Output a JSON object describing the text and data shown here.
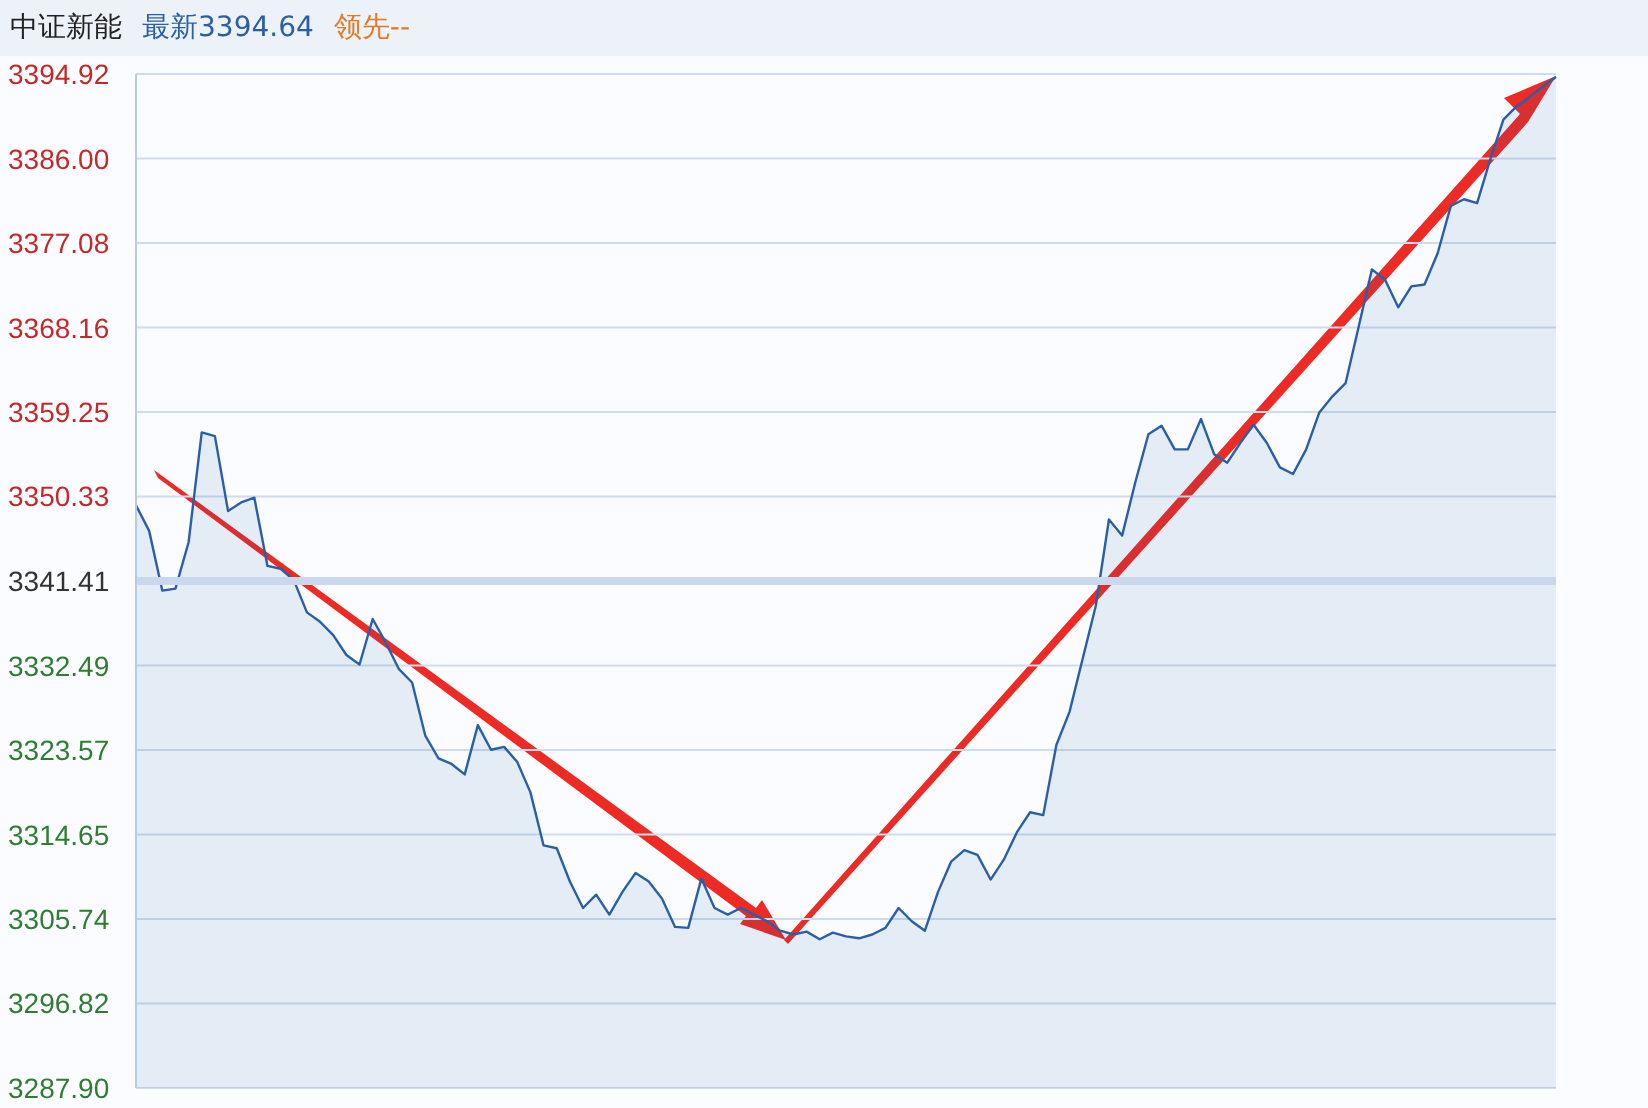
{
  "chart_data": {
    "type": "area",
    "title": "中证新能",
    "subtitle": "最新3394.64",
    "annotations": [
      "领先--"
    ],
    "categories": [
      null,
      null,
      null,
      null,
      null,
      null,
      null,
      null,
      null,
      null,
      null,
      null,
      null,
      null,
      null,
      null,
      null,
      null,
      null,
      null,
      null,
      null,
      null,
      null,
      null,
      null,
      null,
      null,
      null,
      null,
      null,
      null,
      null,
      null,
      null,
      null,
      null,
      null,
      null,
      null,
      null,
      null,
      null,
      null,
      null,
      null,
      null,
      null,
      null,
      null,
      null,
      null,
      null,
      null,
      null,
      null,
      null,
      null,
      null,
      null,
      null,
      null,
      null,
      null,
      null,
      null,
      null,
      null,
      null,
      null,
      null,
      null,
      null,
      null,
      null,
      null,
      null,
      null,
      null,
      null,
      null,
      null,
      null,
      null,
      null,
      null,
      null,
      null,
      null,
      null,
      null,
      null,
      null,
      null,
      null,
      null,
      null,
      null,
      null,
      null,
      null,
      null,
      null,
      null,
      null,
      null,
      null,
      null,
      null
    ],
    "series": [
      {
        "color": "#2a5fa8",
        "values": [
          3349.4,
          3346.7,
          3340.4,
          3340.6,
          3345.5,
          3357.1,
          3356.7,
          3348.8,
          3349.7,
          3350.2,
          3343.0,
          3342.7,
          3341.5,
          3338.1,
          3337.1,
          3335.7,
          3333.6,
          3332.6,
          3337.4,
          3334.9,
          3332.1,
          3330.7,
          3325.1,
          3322.7,
          3322.1,
          3321.0,
          3326.2,
          3323.6,
          3323.9,
          3322.3,
          3319.1,
          3313.5,
          3313.2,
          3309.7,
          3306.9,
          3308.3,
          3306.2,
          3308.6,
          3310.6,
          3309.7,
          3307.9,
          3304.9,
          3304.8,
          3310.0,
          3306.9,
          3306.2,
          3306.9,
          3306.2,
          3305.5,
          3304.5,
          3304.1,
          3304.4,
          3303.6,
          3304.3,
          3303.9,
          3303.7,
          3304.1,
          3304.8,
          3306.9,
          3305.5,
          3304.5,
          3308.6,
          3311.8,
          3313.0,
          3312.5,
          3309.9,
          3312.0,
          3314.9,
          3317.0,
          3316.7,
          3324.1,
          3327.6,
          3333.2,
          3338.8,
          3347.9,
          3346.2,
          3351.8,
          3356.9,
          3357.8,
          3355.3,
          3355.3,
          3358.5,
          3354.8,
          3353.9,
          3356.0,
          3357.9,
          3356.0,
          3353.4,
          3352.7,
          3355.3,
          3359.2,
          3360.9,
          3362.3,
          3368.3,
          3374.3,
          3373.2,
          3370.3,
          3372.5,
          3372.7,
          3376.0,
          3381.0,
          3381.7,
          3381.3,
          3385.9,
          3390.1,
          3391.5,
          3392.5,
          3393.6,
          3394.6
        ]
      }
    ],
    "ylim": [
      3287.9,
      3394.92
    ],
    "yticks": [
      3394.92,
      {
        "value": 3386,
        "label": "3386.00"
      },
      3377.08,
      3368.16,
      3359.25,
      3350.33,
      3341.41,
      3332.49,
      3323.57,
      3314.65,
      3305.74,
      3296.82,
      {
        "value": 3287.9,
        "label": "3287.90"
      }
    ],
    "ref_lines": [
      {
        "axis": "y",
        "value": 3341.41,
        "color": "#c9d8ec"
      }
    ],
    "grid": "y",
    "tick_labels": "y"
  }
}
